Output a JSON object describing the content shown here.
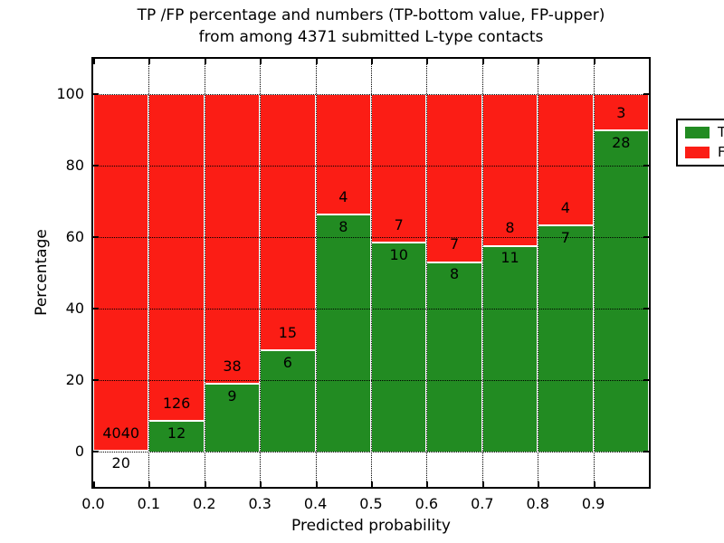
{
  "title": {
    "line1": "TP /FP percentage and numbers (TP-bottom value, FP-upper)",
    "line2": "from among 4371 submitted L-type contacts"
  },
  "axes": {
    "xlabel": "Predicted probability",
    "ylabel": "Percentage",
    "ytick_labels": [
      "0",
      "20",
      "40",
      "60",
      "80",
      "100"
    ],
    "yticks": [
      0,
      20,
      40,
      60,
      80,
      100
    ],
    "xtick_labels": [
      "0.0",
      "0.1",
      "0.2",
      "0.3",
      "0.4",
      "0.5",
      "0.6",
      "0.7",
      "0.8",
      "0.9"
    ],
    "ylim": [
      -10,
      110
    ],
    "xlim": [
      0.0,
      1.0
    ],
    "grid_style": "dotted"
  },
  "legend": {
    "position": "upper right",
    "items": [
      {
        "label": "TP",
        "color": "#228b22"
      },
      {
        "label": "FP",
        "color": "#fb1d15"
      }
    ]
  },
  "colors": {
    "tp": "#228b22",
    "fp": "#fb1d15",
    "grid": "#000000",
    "background": "#ffffff",
    "bar_edge": "#ffffff"
  },
  "chart_data": {
    "type": "bar",
    "stacked": true,
    "normalized": "percent of bin total (TP+FP = 100%)",
    "title": "TP /FP percentage and numbers (TP-bottom value, FP-upper) from among 4371 submitted L-type contacts",
    "xlabel": "Predicted probability",
    "ylabel": "Percentage",
    "total_contacts": 4371,
    "bin_width": 0.1,
    "bins": [
      "0.0-0.1",
      "0.1-0.2",
      "0.2-0.3",
      "0.3-0.4",
      "0.4-0.5",
      "0.5-0.6",
      "0.6-0.7",
      "0.7-0.8",
      "0.8-0.9",
      "0.9-1.0"
    ],
    "series": [
      {
        "name": "TP",
        "color": "#228b22",
        "counts": [
          20,
          12,
          9,
          6,
          8,
          10,
          8,
          11,
          7,
          28
        ]
      },
      {
        "name": "FP",
        "color": "#fb1d15",
        "counts": [
          4040,
          126,
          38,
          15,
          4,
          7,
          7,
          8,
          4,
          3
        ]
      }
    ],
    "tp_percent": [
      0.49,
      8.7,
      19.15,
      28.57,
      66.67,
      58.82,
      53.33,
      57.89,
      63.64,
      90.32
    ],
    "ylim": [
      -10,
      110
    ],
    "yticks": [
      0,
      20,
      40,
      60,
      80,
      100
    ],
    "grid": "dotted",
    "legend_position": "upper right"
  }
}
